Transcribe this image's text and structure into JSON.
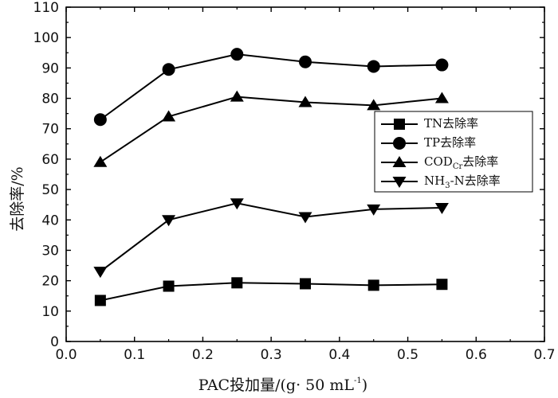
{
  "chart_data": {
    "type": "line",
    "xlabel": "PAC投加量/(g· 50 mL",
    "xlabel_sup": "-1",
    "xlabel_close": ")",
    "ylabel": "去除率/%",
    "xlim": [
      0.0,
      0.7
    ],
    "ylim": [
      0,
      110
    ],
    "xticks": [
      "0.0",
      "0.1",
      "0.2",
      "0.3",
      "0.4",
      "0.5",
      "0.6",
      "0.7"
    ],
    "yticks": [
      "0",
      "10",
      "20",
      "30",
      "40",
      "50",
      "60",
      "70",
      "80",
      "90",
      "100",
      "110"
    ],
    "grid": false,
    "legend_position": "center-right",
    "x": [
      0.05,
      0.15,
      0.25,
      0.35,
      0.45,
      0.55
    ],
    "series": [
      {
        "name": "TN去除率",
        "marker": "square",
        "values": [
          13.5,
          18.2,
          19.3,
          19.0,
          18.5,
          18.8
        ]
      },
      {
        "name": "TP去除率",
        "marker": "circle",
        "values": [
          73.0,
          89.5,
          94.5,
          92.0,
          90.5,
          91.0
        ]
      },
      {
        "name_parts": [
          "COD",
          "Cr",
          "去除率"
        ],
        "name": "CODCr去除率",
        "marker": "triangle-up",
        "values": [
          59.0,
          74.0,
          80.5,
          78.7,
          77.7,
          80.0
        ]
      },
      {
        "name_parts": [
          "NH",
          "3",
          "-N去除率"
        ],
        "name": "NH3-N去除率",
        "marker": "triangle-down",
        "values": [
          23.0,
          40.0,
          45.5,
          41.0,
          43.5,
          44.0
        ]
      }
    ]
  }
}
